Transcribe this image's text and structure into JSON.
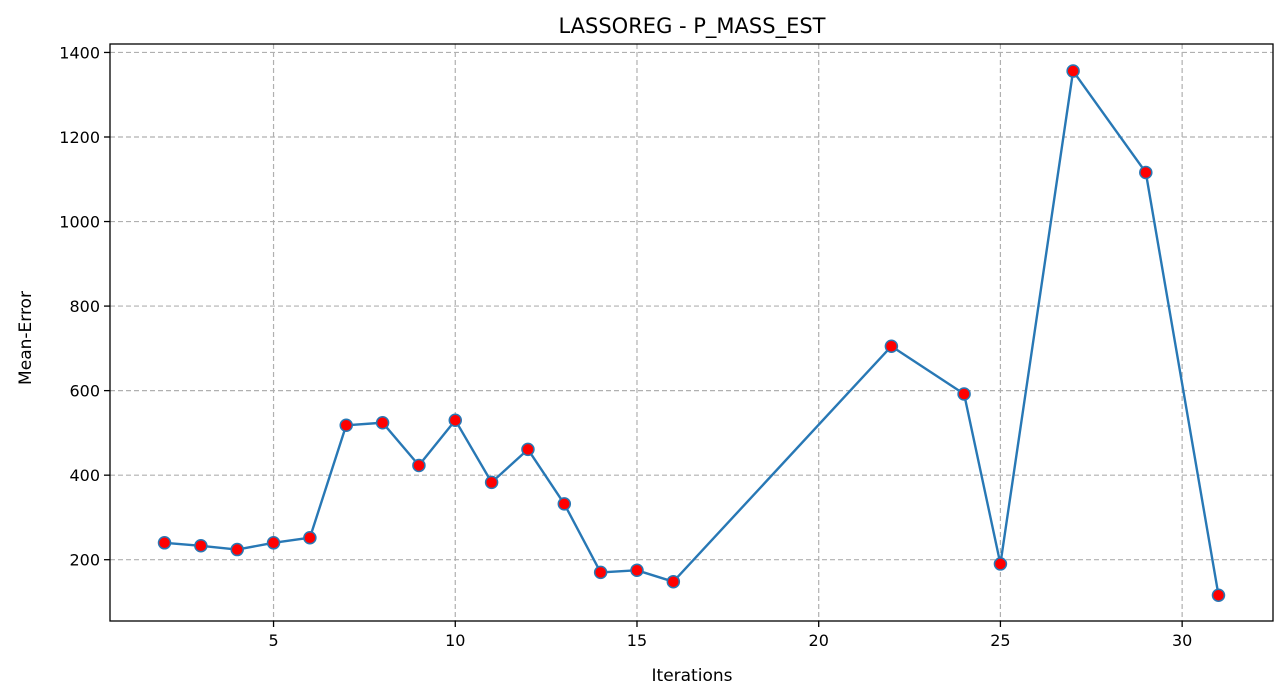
{
  "chart_data": {
    "type": "line",
    "title": "LASSOREG - P_MASS_EST",
    "xlabel": "Iterations",
    "ylabel": "Mean-Error",
    "xlim": [
      0.5,
      32.5
    ],
    "ylim": [
      55,
      1420
    ],
    "xticks": [
      5,
      10,
      15,
      20,
      25,
      30
    ],
    "yticks": [
      200,
      400,
      600,
      800,
      1000,
      1200,
      1400
    ],
    "grid": true,
    "line_color": "#2878b5",
    "marker_fill": "#ff0000",
    "marker_edge": "#2878b5",
    "series": [
      {
        "x": [
          2,
          3,
          4,
          5,
          6,
          7,
          8,
          9,
          10,
          11,
          12,
          13,
          14,
          15,
          16,
          22,
          24,
          25,
          27,
          29,
          31
        ],
        "y": [
          240,
          233,
          224,
          240,
          252,
          518,
          524,
          423,
          530,
          383,
          461,
          332,
          170,
          175,
          148,
          705,
          592,
          190,
          1356,
          1116,
          116
        ]
      }
    ]
  }
}
